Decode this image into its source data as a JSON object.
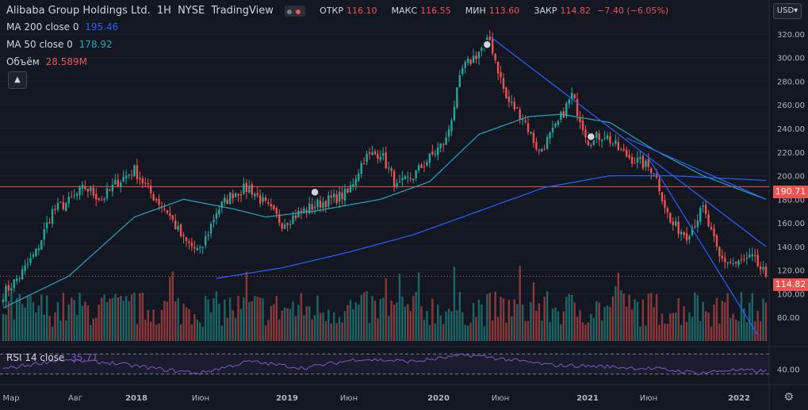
{
  "header": {
    "symbol": "Alibaba Group Holdings Ltd.",
    "interval": "1H",
    "exchange": "NYSE",
    "source": "TradingView",
    "ohlc": {
      "open_label": "ОТКР",
      "open": "116.10",
      "high_label": "МАКС",
      "high": "116.55",
      "low_label": "МИН",
      "low": "113.60",
      "close_label": "ЗАКР",
      "close": "114.82",
      "change": "−7.40 (−6.05%)"
    },
    "currency": "USD",
    "collapse_icon": "chevron-up-icon",
    "settings_icon": "gear-icon"
  },
  "indicators": {
    "ma200": {
      "label": "MA 200 close 0",
      "value": "195.46",
      "color": "#2962ff"
    },
    "ma50": {
      "label": "MA 50 close 0",
      "value": "178.92",
      "color": "#26a6b8"
    },
    "volume": {
      "label": "Объём",
      "value": "28.589M",
      "color": "#ef5350"
    },
    "rsi": {
      "label": "RSI 14 close",
      "value": "35.71",
      "color": "#7e57c2"
    }
  },
  "price_tags": {
    "hline": "190.71",
    "last": "114.82"
  },
  "colors": {
    "background": "#131722",
    "up": "#26a69a",
    "down": "#ef5350",
    "trendline": "#2962ff",
    "grid": "#1e222d"
  },
  "chart_data": {
    "type": "candlestick",
    "ylim": [
      60,
      330
    ],
    "yticks": [
      320,
      300,
      280,
      260,
      240,
      220,
      200,
      180,
      160,
      140,
      120,
      100,
      80
    ],
    "rsi_ticks": [
      "40.00"
    ],
    "xticks": [
      "Мар",
      "Авг",
      "2018",
      "Июн",
      "2019",
      "Июн",
      "2020",
      "Июн",
      "2021",
      "Июн",
      "2022"
    ],
    "horizontal_line": 190.71,
    "last_price": 114.82,
    "close_anchors": [
      [
        0,
        100
      ],
      [
        6,
        115
      ],
      [
        12,
        135
      ],
      [
        18,
        170
      ],
      [
        24,
        178
      ],
      [
        30,
        190
      ],
      [
        36,
        180
      ],
      [
        42,
        195
      ],
      [
        48,
        205
      ],
      [
        54,
        185
      ],
      [
        60,
        170
      ],
      [
        66,
        145
      ],
      [
        72,
        135
      ],
      [
        78,
        170
      ],
      [
        84,
        185
      ],
      [
        90,
        190
      ],
      [
        96,
        175
      ],
      [
        102,
        160
      ],
      [
        108,
        168
      ],
      [
        114,
        175
      ],
      [
        120,
        180
      ],
      [
        126,
        185
      ],
      [
        132,
        215
      ],
      [
        138,
        220
      ],
      [
        144,
        190
      ],
      [
        150,
        200
      ],
      [
        156,
        215
      ],
      [
        162,
        230
      ],
      [
        168,
        290
      ],
      [
        174,
        305
      ],
      [
        178,
        315
      ],
      [
        184,
        265
      ],
      [
        190,
        250
      ],
      [
        196,
        220
      ],
      [
        202,
        240
      ],
      [
        208,
        268
      ],
      [
        214,
        230
      ],
      [
        220,
        235
      ],
      [
        226,
        220
      ],
      [
        232,
        212
      ],
      [
        238,
        205
      ],
      [
        244,
        160
      ],
      [
        250,
        150
      ],
      [
        256,
        172
      ],
      [
        262,
        130
      ],
      [
        268,
        125
      ],
      [
        274,
        130
      ],
      [
        279,
        114.82
      ]
    ],
    "ma50_anchors": [
      [
        0,
        88
      ],
      [
        24,
        115
      ],
      [
        48,
        165
      ],
      [
        66,
        180
      ],
      [
        84,
        172
      ],
      [
        96,
        165
      ],
      [
        114,
        170
      ],
      [
        138,
        180
      ],
      [
        156,
        195
      ],
      [
        174,
        235
      ],
      [
        192,
        250
      ],
      [
        204,
        252
      ],
      [
        222,
        245
      ],
      [
        238,
        222
      ],
      [
        256,
        200
      ],
      [
        279,
        180
      ]
    ],
    "ma200_anchors": [
      [
        78,
        113
      ],
      [
        102,
        122
      ],
      [
        126,
        135
      ],
      [
        150,
        150
      ],
      [
        174,
        170
      ],
      [
        198,
        190
      ],
      [
        222,
        200
      ],
      [
        244,
        200
      ],
      [
        279,
        196
      ]
    ],
    "rsi_anchors": [
      [
        0,
        40
      ],
      [
        20,
        58
      ],
      [
        40,
        52
      ],
      [
        60,
        38
      ],
      [
        72,
        32
      ],
      [
        90,
        55
      ],
      [
        110,
        42
      ],
      [
        130,
        60
      ],
      [
        150,
        55
      ],
      [
        170,
        68
      ],
      [
        180,
        62
      ],
      [
        200,
        48
      ],
      [
        220,
        45
      ],
      [
        240,
        40
      ],
      [
        255,
        32
      ],
      [
        265,
        38
      ],
      [
        279,
        35.71
      ]
    ],
    "trendlines": [
      {
        "from": [
          178,
          318
        ],
        "to": [
          279,
          140
        ]
      },
      {
        "from": [
          228,
          232
        ],
        "to": [
          279,
          180
        ]
      },
      {
        "from": [
          236,
          215
        ],
        "to": [
          276,
          65
        ]
      }
    ],
    "alert_markers": [
      [
        114,
        186
      ],
      [
        177,
        311
      ],
      [
        215,
        233
      ]
    ]
  }
}
